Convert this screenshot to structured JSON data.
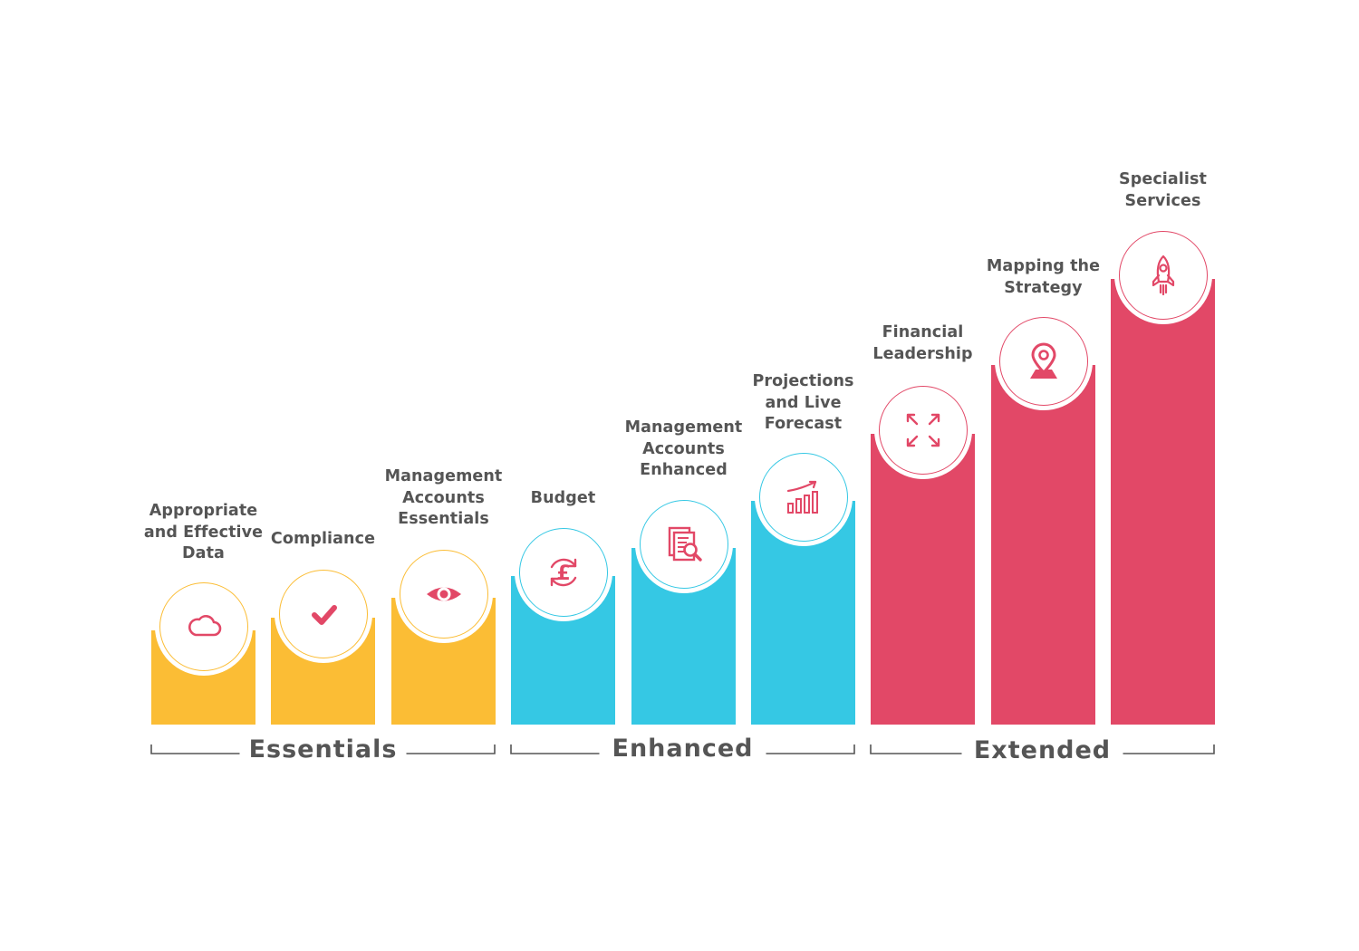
{
  "colors": {
    "essentials": "#FBBD35",
    "enhanced": "#35C8E4",
    "extended": "#E24867",
    "icon": "#E24867",
    "text": "#555555",
    "bracket": "#555555"
  },
  "groups": [
    {
      "label": "Essentials",
      "color": "#FBBD35"
    },
    {
      "label": "Enhanced",
      "color": "#35C8E4"
    },
    {
      "label": "Extended",
      "color": "#E24867"
    }
  ],
  "steps": [
    {
      "label": "Appropriate and Effective Data",
      "icon": "cloud-icon",
      "group": "Essentials"
    },
    {
      "label": "Compliance",
      "icon": "checkmark-icon",
      "group": "Essentials"
    },
    {
      "label": "Management Accounts Essentials",
      "icon": "eye-icon",
      "group": "Essentials"
    },
    {
      "label": "Budget",
      "icon": "pound-cycle-icon",
      "group": "Enhanced"
    },
    {
      "label": "Management Accounts Enhanced",
      "icon": "document-search-icon",
      "group": "Enhanced"
    },
    {
      "label": "Projections and Live Forecast",
      "icon": "growth-chart-icon",
      "group": "Enhanced"
    },
    {
      "label": "Financial Leadership",
      "icon": "expand-arrows-icon",
      "group": "Extended"
    },
    {
      "label": "Mapping the Strategy",
      "icon": "map-pin-icon",
      "group": "Extended"
    },
    {
      "label": "Specialist Services",
      "icon": "rocket-icon",
      "group": "Extended"
    }
  ]
}
